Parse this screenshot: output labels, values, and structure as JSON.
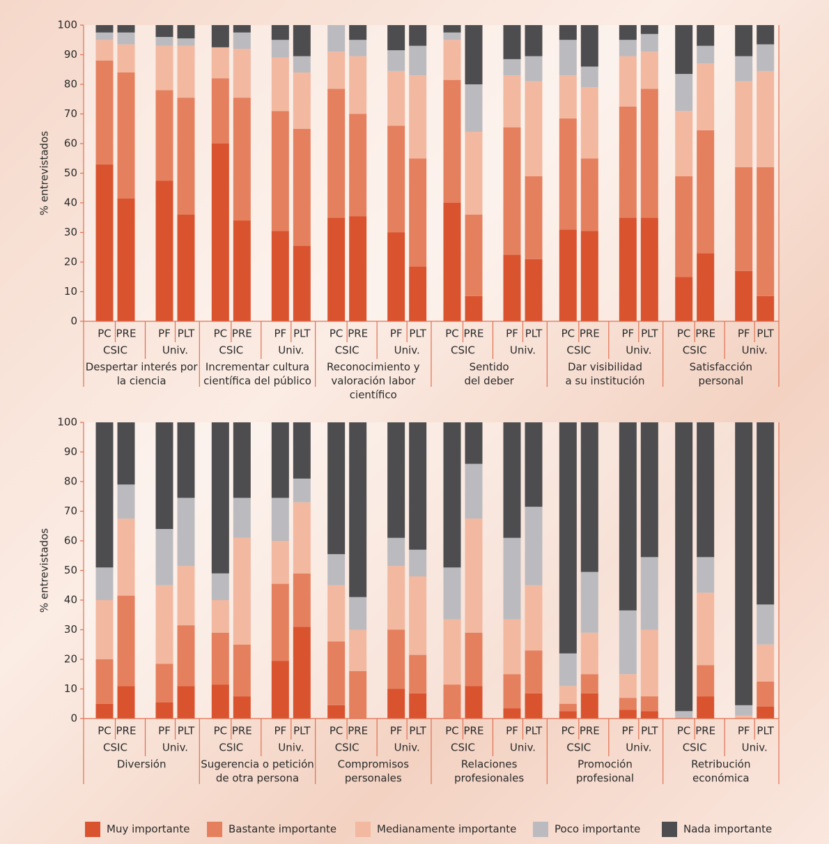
{
  "chart_data": [
    {
      "type": "bar",
      "stacked": true,
      "ylabel": "% entrevistados",
      "ylim": [
        0,
        100
      ],
      "yticks": [
        0,
        10,
        20,
        30,
        40,
        50,
        60,
        70,
        80,
        90,
        100
      ],
      "groups": [
        {
          "label": [
            "Despertar interés por",
            "la ciencia"
          ],
          "subgroups": [
            {
              "label": "CSIC",
              "categories": [
                "PC",
                "PRE"
              ]
            },
            {
              "label": "Univ.",
              "categories": [
                "PF",
                "PLT"
              ]
            }
          ]
        },
        {
          "label": [
            "Incrementar cultura",
            "científica del público"
          ],
          "subgroups": [
            {
              "label": "CSIC",
              "categories": [
                "PC",
                "PRE"
              ]
            },
            {
              "label": "Univ.",
              "categories": [
                "PF",
                "PLT"
              ]
            }
          ]
        },
        {
          "label": [
            "Reconocimiento y",
            "valoración labor",
            "científico"
          ],
          "subgroups": [
            {
              "label": "CSIC",
              "categories": [
                "PC",
                "PRE"
              ]
            },
            {
              "label": "Univ.",
              "categories": [
                "PF",
                "PLT"
              ]
            }
          ]
        },
        {
          "label": [
            "Sentido",
            "del deber"
          ],
          "subgroups": [
            {
              "label": "CSIC",
              "categories": [
                "PC",
                "PRE"
              ]
            },
            {
              "label": "Univ.",
              "categories": [
                "PF",
                "PLT"
              ]
            }
          ]
        },
        {
          "label": [
            "Dar visibilidad",
            "a su institución"
          ],
          "subgroups": [
            {
              "label": "CSIC",
              "categories": [
                "PC",
                "PRE"
              ]
            },
            {
              "label": "Univ.",
              "categories": [
                "PF",
                "PLT"
              ]
            }
          ]
        },
        {
          "label": [
            "Satisfacción",
            "personal"
          ],
          "subgroups": [
            {
              "label": "CSIC",
              "categories": [
                "PC",
                "PRE"
              ]
            },
            {
              "label": "Univ.",
              "categories": [
                "PF",
                "PLT"
              ]
            }
          ]
        }
      ],
      "series": [
        {
          "name": "Muy importante",
          "color": "#d9532f",
          "values": [
            53,
            41.5,
            47.5,
            36,
            60,
            34,
            30.5,
            25.5,
            35,
            35.5,
            30,
            18.5,
            40,
            8.5,
            22.5,
            21,
            31,
            30.5,
            35,
            35,
            15,
            23,
            17,
            8.5
          ]
        },
        {
          "name": "Bastante importante",
          "color": "#e5805f",
          "values": [
            35,
            42.5,
            30.5,
            39.5,
            22,
            41.5,
            40.5,
            39.5,
            43.5,
            34.5,
            36,
            36.5,
            41.5,
            27.5,
            43,
            28,
            37.5,
            24.5,
            37.5,
            43.5,
            34,
            41.5,
            35,
            43.5
          ]
        },
        {
          "name": "Medianamente importante",
          "color": "#f2b8a0",
          "values": [
            7,
            9.5,
            15,
            17.5,
            10.5,
            16.5,
            18,
            19,
            12.5,
            19.5,
            18.5,
            28,
            13.5,
            28,
            17.5,
            32,
            14.5,
            24,
            17,
            12.5,
            22,
            22.5,
            29,
            32.5
          ]
        },
        {
          "name": "Poco importante",
          "color": "#bbbbbf",
          "values": [
            2.5,
            4,
            3,
            2.5,
            0,
            5.5,
            6,
            5.5,
            9,
            5.5,
            7,
            10,
            2.5,
            16,
            5.5,
            8.5,
            12,
            7,
            5.5,
            6,
            12.5,
            6,
            8.5,
            9
          ]
        },
        {
          "name": "Nada importante",
          "color": "#4d4d4f",
          "values": [
            2.5,
            2.5,
            4,
            4.5,
            7.5,
            2.5,
            5,
            10.5,
            0,
            5,
            8.5,
            7,
            2.5,
            20,
            11.5,
            10.5,
            5,
            14,
            5,
            3,
            16.5,
            7,
            10.5,
            6.5
          ]
        }
      ]
    },
    {
      "type": "bar",
      "stacked": true,
      "ylabel": "% entrevistados",
      "ylim": [
        0,
        100
      ],
      "yticks": [
        0,
        10,
        20,
        30,
        40,
        50,
        60,
        70,
        80,
        90,
        100
      ],
      "groups": [
        {
          "label": [
            "Diversión"
          ],
          "subgroups": [
            {
              "label": "CSIC",
              "categories": [
                "PC",
                "PRE"
              ]
            },
            {
              "label": "Univ.",
              "categories": [
                "PF",
                "PLT"
              ]
            }
          ]
        },
        {
          "label": [
            "Sugerencia o petición",
            "de otra persona"
          ],
          "subgroups": [
            {
              "label": "CSIC",
              "categories": [
                "PC",
                "PRE"
              ]
            },
            {
              "label": "Univ.",
              "categories": [
                "PF",
                "PLT"
              ]
            }
          ]
        },
        {
          "label": [
            "Compromisos",
            "personales"
          ],
          "subgroups": [
            {
              "label": "CSIC",
              "categories": [
                "PC",
                "PRE"
              ]
            },
            {
              "label": "Univ.",
              "categories": [
                "PF",
                "PLT"
              ]
            }
          ]
        },
        {
          "label": [
            "Relaciones",
            "profesionales"
          ],
          "subgroups": [
            {
              "label": "CSIC",
              "categories": [
                "PC",
                "PRE"
              ]
            },
            {
              "label": "Univ.",
              "categories": [
                "PF",
                "PLT"
              ]
            }
          ]
        },
        {
          "label": [
            "Promoción",
            "profesional"
          ],
          "subgroups": [
            {
              "label": "CSIC",
              "categories": [
                "PC",
                "PRE"
              ]
            },
            {
              "label": "Univ.",
              "categories": [
                "PF",
                "PLT"
              ]
            }
          ]
        },
        {
          "label": [
            "Retribución",
            "económica"
          ],
          "subgroups": [
            {
              "label": "CSIC",
              "categories": [
                "PC",
                "PRE"
              ]
            },
            {
              "label": "Univ.",
              "categories": [
                "PF",
                "PLT"
              ]
            }
          ]
        }
      ],
      "series": [
        {
          "name": "Muy importante",
          "color": "#d9532f",
          "values": [
            5,
            11,
            5.5,
            11,
            11.5,
            7.5,
            19.5,
            31,
            4.5,
            0,
            10,
            8.5,
            0,
            11,
            3.5,
            8.5,
            2.5,
            8.5,
            3,
            2.5,
            0,
            7.5,
            0,
            4
          ]
        },
        {
          "name": "Bastante importante",
          "color": "#e5805f",
          "values": [
            15,
            30.5,
            13,
            20.5,
            17.5,
            17.5,
            26,
            18,
            21.5,
            16,
            20,
            13,
            11.5,
            18,
            11.5,
            14.5,
            2.5,
            6.5,
            4,
            5,
            0,
            10.5,
            0,
            8.5
          ]
        },
        {
          "name": "Medianamente importante",
          "color": "#f2b8a0",
          "values": [
            20,
            26,
            26.5,
            20,
            11,
            36,
            14.5,
            24,
            19,
            14,
            21.5,
            26.5,
            22,
            38.5,
            18.5,
            22,
            6,
            14,
            8,
            22.5,
            0,
            24.5,
            1,
            12.5
          ]
        },
        {
          "name": "Poco importante",
          "color": "#bbbbbf",
          "values": [
            11,
            11.5,
            19,
            23,
            9,
            13.5,
            14.5,
            8,
            10.5,
            11,
            9.5,
            9,
            17.5,
            18.5,
            27.5,
            26.5,
            11,
            20.5,
            21.5,
            24.5,
            2.5,
            12,
            3.5,
            13.5
          ]
        },
        {
          "name": "Nada importante",
          "color": "#4d4d4f",
          "values": [
            49,
            21,
            36,
            25.5,
            51,
            25.5,
            25.5,
            19,
            44.5,
            59,
            39,
            43,
            49,
            14,
            39,
            28.5,
            78,
            50.5,
            63.5,
            45.5,
            97.5,
            45.5,
            95.5,
            61.5
          ]
        }
      ]
    }
  ]
}
